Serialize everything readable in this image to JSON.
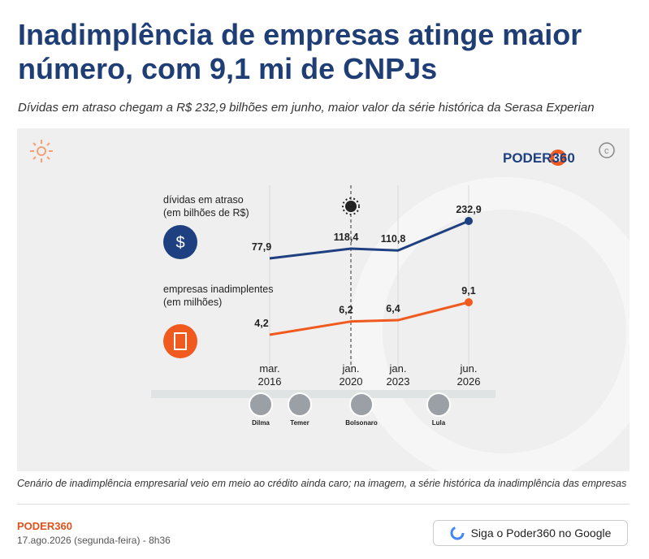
{
  "header": {
    "title": "Inadimplência de empresas atinge maior número, com 9,1 mi de CNPJs",
    "subtitle": "Dívidas em atraso chegam a R$ 232,9 bilhões em junho, maior valor da série histórica da Serasa Experian"
  },
  "chart_data": {
    "type": "line",
    "brand": "PODER360",
    "categories": [
      "mar. 2016",
      "jan. 2020",
      "jan. 2023",
      "jun. 2026"
    ],
    "series": [
      {
        "name": "dívidas em atraso (em bilhões de R$)",
        "color": "#1e4080",
        "values": [
          77.9,
          118.4,
          110.8,
          232.9
        ],
        "value_labels": [
          "77,9",
          "118,4",
          "110,8",
          "232,9"
        ]
      },
      {
        "name": "empresas inadimplentes (em milhões)",
        "color": "#f05a1e",
        "values": [
          4.2,
          6.2,
          6.4,
          9.1
        ],
        "value_labels": [
          "4,2",
          "6,2",
          "6,4",
          "9,1"
        ]
      }
    ],
    "presidents": [
      "Dilma",
      "Temer",
      "Bolsonaro",
      "Lula"
    ]
  },
  "caption": "Cenário de inadimplência empresarial veio em meio ao crédito ainda caro; na imagem, a série histórica da inadimplência das empresas",
  "footer": {
    "brand": "PODER360",
    "date": "17.ago.2026 (segunda-feira) - 8h36",
    "button": "Siga o Poder360 no Google"
  }
}
